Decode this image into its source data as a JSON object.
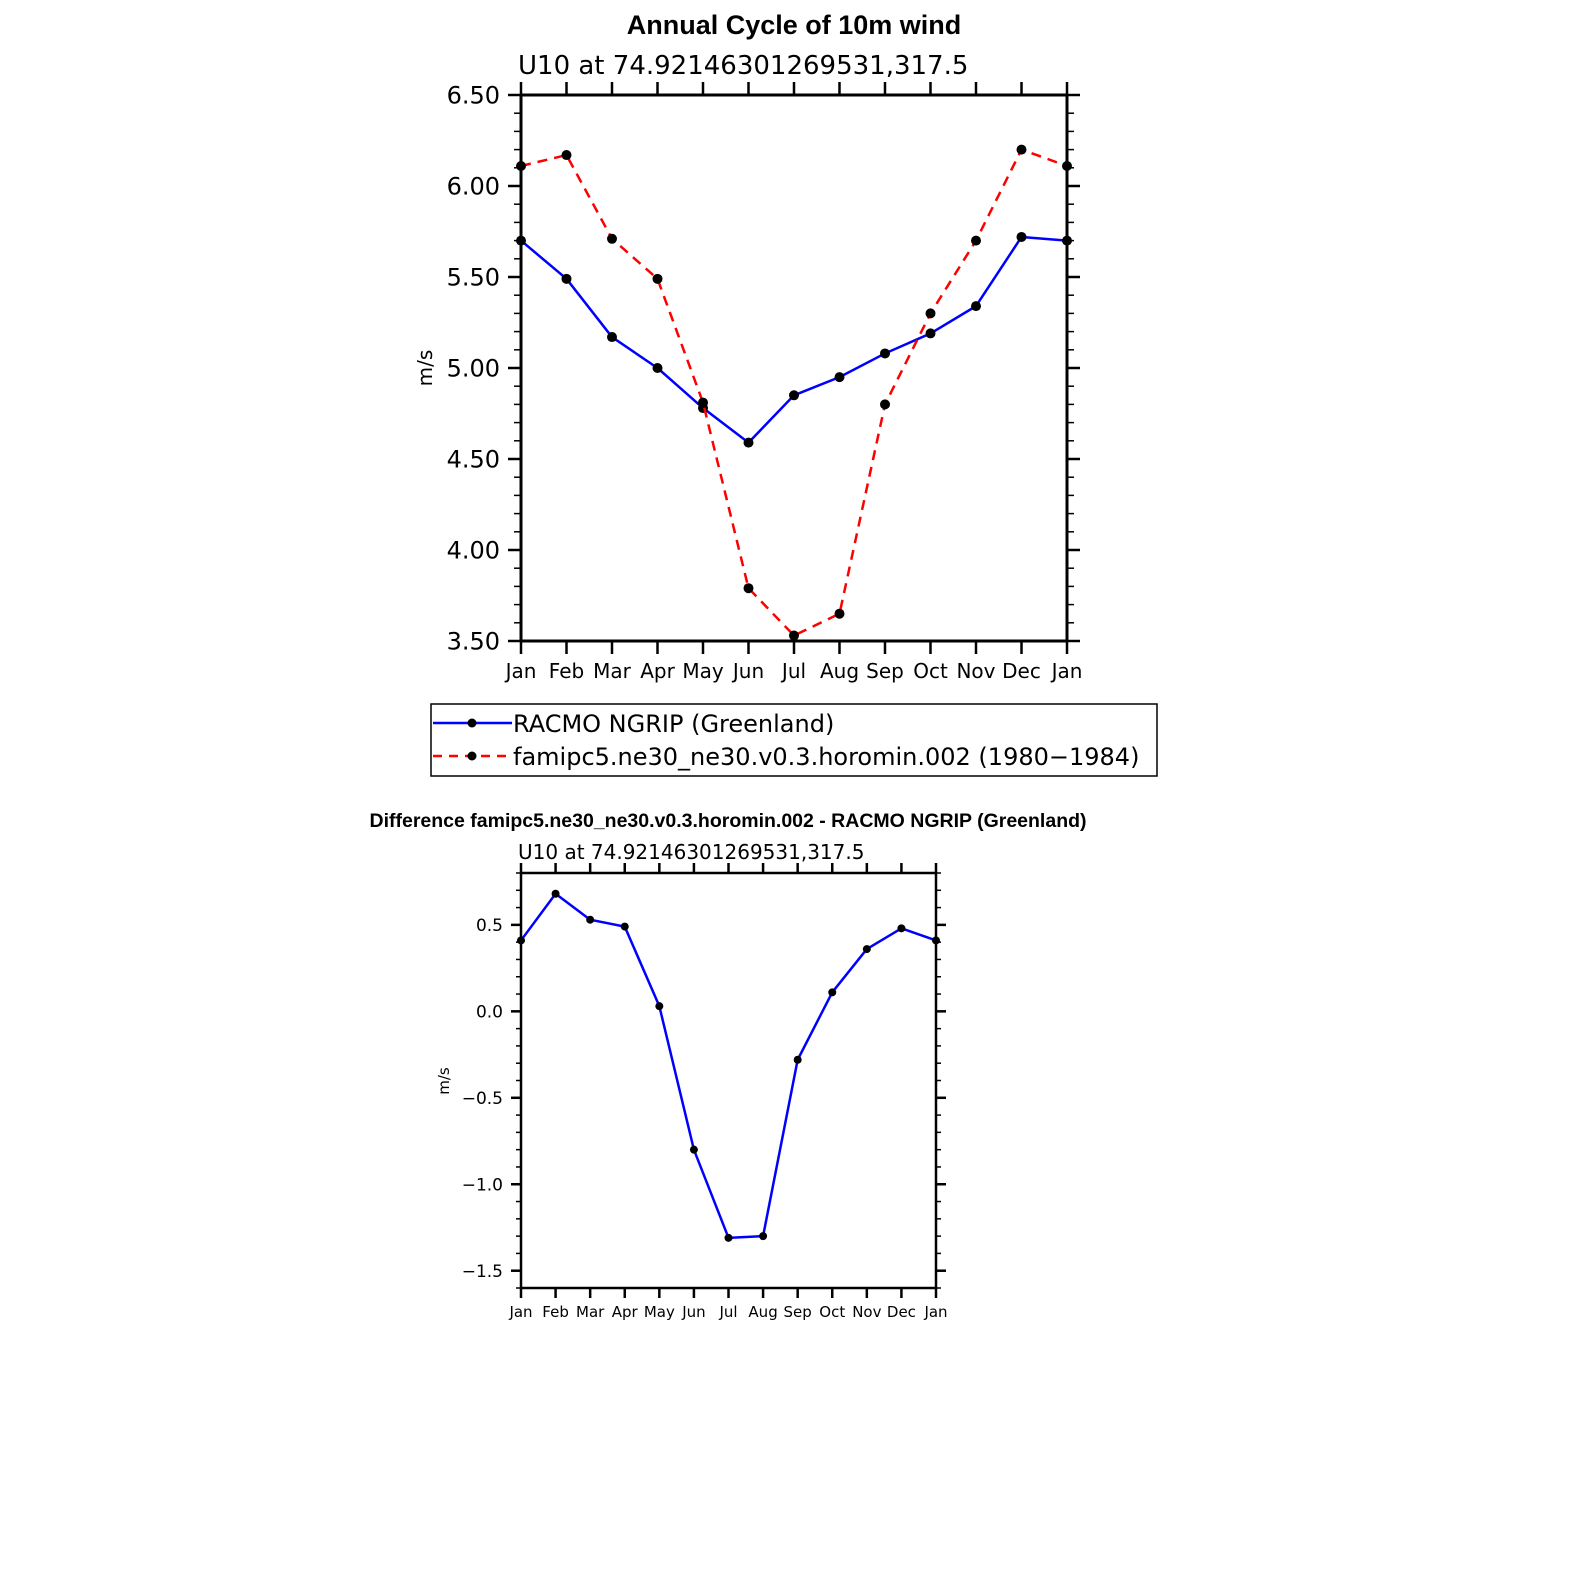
{
  "colors": {
    "racmo": "#0000ff",
    "model": "#ff0000",
    "diff": "#0000ff",
    "marker": "#000000"
  },
  "chart_data": [
    {
      "type": "line",
      "title": "Annual Cycle of 10m wind",
      "subtitle": "U10 at 74.92146301269531,317.5",
      "xlabel": "",
      "ylabel": "m/s",
      "categories": [
        "Jan",
        "Feb",
        "Mar",
        "Apr",
        "May",
        "Jun",
        "Jul",
        "Aug",
        "Sep",
        "Oct",
        "Nov",
        "Dec",
        "Jan"
      ],
      "ylim": [
        3.5,
        6.5
      ],
      "yticks": [
        3.5,
        4.0,
        4.5,
        5.0,
        5.5,
        6.0,
        6.5
      ],
      "ytick_labels": [
        "3.50",
        "4.00",
        "4.50",
        "5.00",
        "5.50",
        "6.00",
        "6.50"
      ],
      "grid": false,
      "legend_position": "bottom",
      "series": [
        {
          "name": "RACMO NGRIP (Greenland)",
          "color": "#0000ff",
          "dash": "solid",
          "values": [
            5.7,
            5.49,
            5.17,
            5.0,
            4.78,
            4.59,
            4.85,
            4.95,
            5.08,
            5.19,
            5.34,
            5.72,
            5.7
          ]
        },
        {
          "name": "famipc5.ne30_ne30.v0.3.horomin.002 (1980−1984)",
          "color": "#ff0000",
          "dash": "dashed",
          "values": [
            6.11,
            6.17,
            5.71,
            5.49,
            4.81,
            3.79,
            3.53,
            3.65,
            4.8,
            5.3,
            5.7,
            6.2,
            6.11
          ]
        }
      ]
    },
    {
      "type": "line",
      "title": "Difference famipc5.ne30_ne30.v0.3.horomin.002 - RACMO NGRIP (Greenland)",
      "subtitle": "U10 at 74.92146301269531,317.5",
      "xlabel": "",
      "ylabel": "m/s",
      "categories": [
        "Jan",
        "Feb",
        "Mar",
        "Apr",
        "May",
        "Jun",
        "Jul",
        "Aug",
        "Sep",
        "Oct",
        "Nov",
        "Dec",
        "Jan"
      ],
      "ylim": [
        -1.6,
        0.8
      ],
      "yticks": [
        -1.5,
        -1.0,
        -0.5,
        0.0,
        0.5
      ],
      "ytick_labels": [
        "−1.5",
        "−1.0",
        "−0.5",
        "0.0",
        "0.5"
      ],
      "grid": false,
      "series": [
        {
          "color": "#0000ff",
          "dash": "solid",
          "values": [
            0.41,
            0.68,
            0.53,
            0.49,
            0.03,
            -0.8,
            -1.31,
            -1.3,
            -0.28,
            0.11,
            0.36,
            0.48,
            0.41
          ]
        }
      ]
    }
  ]
}
